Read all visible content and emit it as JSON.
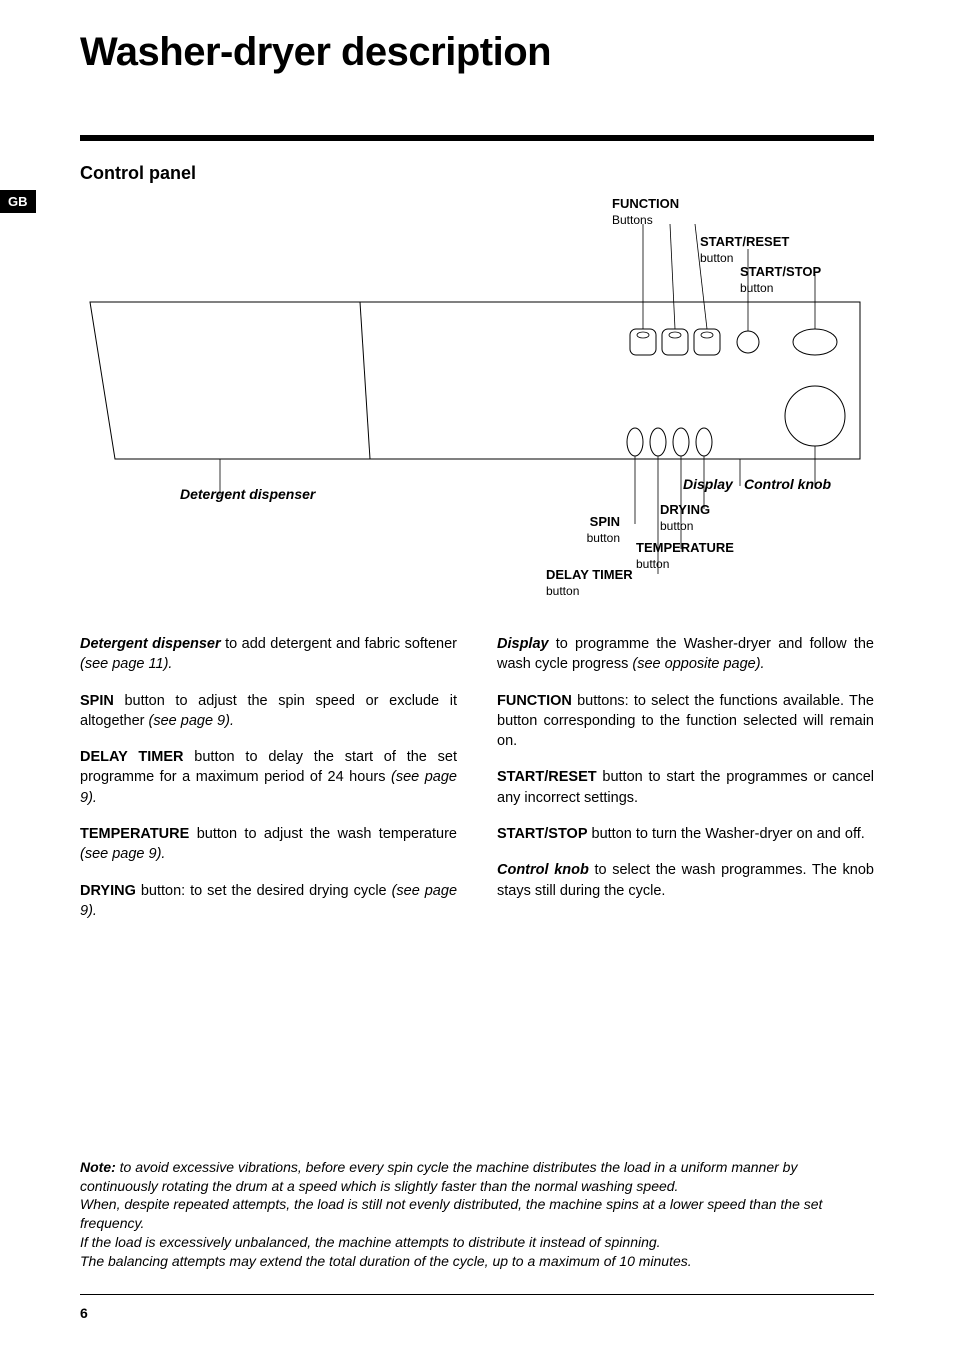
{
  "page_title": "Washer-dryer description",
  "region_tab": "GB",
  "page_number": "6",
  "section_heading": "Control panel",
  "callouts": {
    "function": {
      "label": "FUNCTION",
      "sub": "Buttons"
    },
    "start_reset": {
      "label": "START/RESET",
      "sub": "button"
    },
    "start_stop": {
      "label": "START/STOP",
      "sub": "button"
    },
    "detergent": {
      "label": "Detergent dispenser"
    },
    "display": {
      "label": "Display"
    },
    "control_knob": {
      "label": "Control knob"
    },
    "spin": {
      "label": "SPIN",
      "sub": "button"
    },
    "drying": {
      "label": "DRYING",
      "sub": "button"
    },
    "temperature": {
      "label": "TEMPERATURE",
      "sub": "button"
    },
    "delay_timer": {
      "label": "DELAY TIMER",
      "sub": "button"
    }
  },
  "descriptions": {
    "left": [
      {
        "lead": "Detergent dispenser",
        "lead_style": "bi",
        "text": " to add detergent and fabric softener ",
        "ref": "(see page 11)."
      },
      {
        "lead": "SPIN",
        "lead_style": "b",
        "text": " button to adjust the spin speed or exclude it altogether ",
        "ref": "(see page 9)."
      },
      {
        "lead": "DELAY TIMER",
        "lead_style": "b",
        "text": " button to delay the start of the set programme for a maximum period of 24 hours ",
        "ref": "(see page 9)."
      },
      {
        "lead": "TEMPERATURE",
        "lead_style": "b",
        "text": " button to adjust the wash temperature ",
        "ref": "(see page 9)."
      },
      {
        "lead": "DRYING",
        "lead_style": "b",
        "text": " button: to set the desired drying cycle ",
        "ref": "(see page 9)."
      }
    ],
    "right": [
      {
        "lead": "Display",
        "lead_style": "bi",
        "text": " to programme the Washer-dryer and follow the wash cycle progress ",
        "ref": "(see opposite page)."
      },
      {
        "lead": "FUNCTION",
        "lead_style": "b",
        "text": " buttons: to select the functions available. The button corresponding to the function selected will remain on.",
        "ref": ""
      },
      {
        "lead": "START/RESET",
        "lead_style": "b",
        "text": " button to start the programmes or cancel any incorrect settings.",
        "ref": ""
      },
      {
        "lead": "START/STOP",
        "lead_style": "b",
        "text": " button to turn the Washer-dryer on and off.",
        "ref": ""
      },
      {
        "lead": "Control knob",
        "lead_style": "bi",
        "text": " to select the wash programmes. The knob stays still during the cycle.",
        "ref": ""
      }
    ]
  },
  "note": {
    "lead": "Note:",
    "body": " to avoid excessive vibrations, before every spin cycle the machine distributes the load in a uniform manner by continuously rotating the drum at a speed which is slightly faster than the normal washing speed.\nWhen, despite repeated attempts, the load is still not evenly distributed, the machine spins at a lower speed than the set frequency.\nIf the load is excessively unbalanced, the machine attempts to distribute it instead of spinning.\nThe balancing attempts may extend the total duration of the cycle, up to a maximum of 10 minutes."
  },
  "diagram_style": {
    "stroke": "#000000",
    "stroke_width": 1,
    "panel_fill": "#ffffff"
  }
}
